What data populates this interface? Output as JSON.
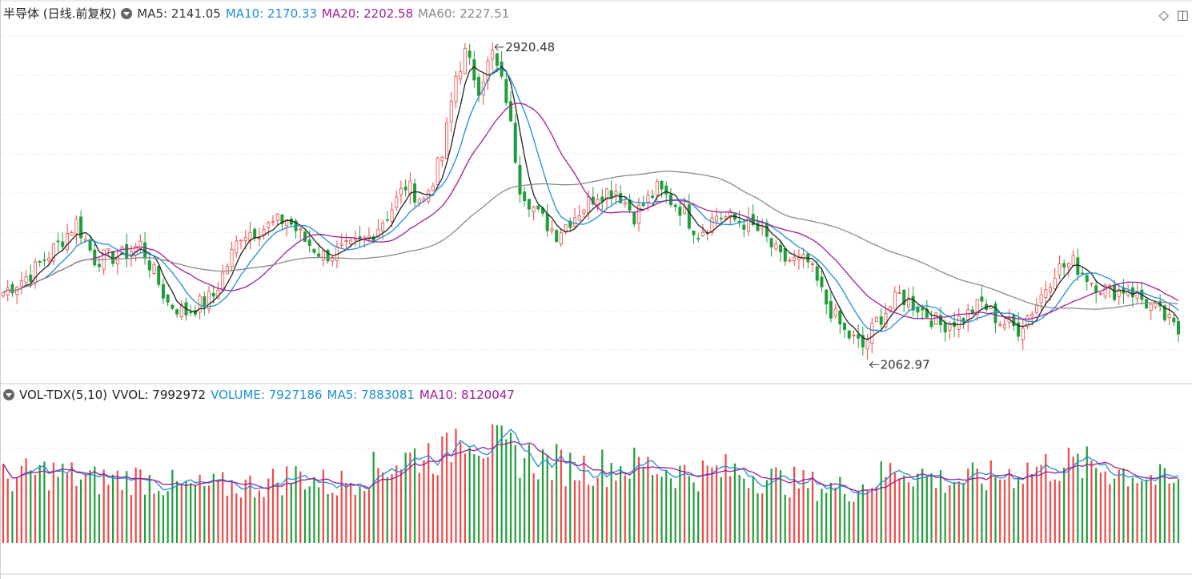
{
  "price_legend": {
    "title": "半导体 (日线.前复权)",
    "ma5": "MA5: 2141.05",
    "ma10": "MA10: 2170.33",
    "ma20": "MA20: 2202.58",
    "ma60": "MA60: 2227.51"
  },
  "volume_legend": {
    "title": "VOL-TDX(5,10)",
    "vvol": "VVOL: 7992972",
    "volume": "VOLUME: 7927186",
    "ma5": "MA5: 7883081",
    "ma10": "MA10: 8120047"
  },
  "toolbar": {
    "diamond_icon": "◇",
    "panel_icon": "◫"
  },
  "colors": {
    "up": "#f04848",
    "down": "#1f9e3a",
    "ma5": "#222222",
    "ma10": "#1e8fd6",
    "ma20": "#a01d9a",
    "ma60": "#8a8a8a"
  },
  "chart_data": [
    {
      "type": "candlestick",
      "title": "半导体 (日线.前复权)",
      "ylim": [
        2000,
        2950
      ],
      "annotations": {
        "high": "2920.48",
        "low": "2062.97"
      },
      "keypoints": [
        {
          "i": 0,
          "p": 2230
        },
        {
          "i": 6,
          "p": 2280
        },
        {
          "i": 12,
          "p": 2360
        },
        {
          "i": 16,
          "p": 2420
        },
        {
          "i": 20,
          "p": 2320
        },
        {
          "i": 26,
          "p": 2330
        },
        {
          "i": 30,
          "p": 2360
        },
        {
          "i": 36,
          "p": 2200
        },
        {
          "i": 40,
          "p": 2175
        },
        {
          "i": 46,
          "p": 2220
        },
        {
          "i": 52,
          "p": 2390
        },
        {
          "i": 56,
          "p": 2400
        },
        {
          "i": 62,
          "p": 2430
        },
        {
          "i": 66,
          "p": 2370
        },
        {
          "i": 70,
          "p": 2330
        },
        {
          "i": 76,
          "p": 2350
        },
        {
          "i": 80,
          "p": 2380
        },
        {
          "i": 84,
          "p": 2440
        },
        {
          "i": 88,
          "p": 2520
        },
        {
          "i": 92,
          "p": 2480
        },
        {
          "i": 96,
          "p": 2600
        },
        {
          "i": 99,
          "p": 2820
        },
        {
          "i": 101,
          "p": 2880
        },
        {
          "i": 104,
          "p": 2790
        },
        {
          "i": 107,
          "p": 2880
        },
        {
          "i": 110,
          "p": 2760
        },
        {
          "i": 113,
          "p": 2520
        },
        {
          "i": 117,
          "p": 2440
        },
        {
          "i": 121,
          "p": 2390
        },
        {
          "i": 125,
          "p": 2440
        },
        {
          "i": 130,
          "p": 2500
        },
        {
          "i": 134,
          "p": 2510
        },
        {
          "i": 138,
          "p": 2440
        },
        {
          "i": 143,
          "p": 2510
        },
        {
          "i": 148,
          "p": 2460
        },
        {
          "i": 152,
          "p": 2390
        },
        {
          "i": 156,
          "p": 2440
        },
        {
          "i": 162,
          "p": 2420
        },
        {
          "i": 166,
          "p": 2390
        },
        {
          "i": 170,
          "p": 2320
        },
        {
          "i": 176,
          "p": 2310
        },
        {
          "i": 180,
          "p": 2200
        },
        {
          "i": 184,
          "p": 2120
        },
        {
          "i": 188,
          "p": 2080
        },
        {
          "i": 191,
          "p": 2150
        },
        {
          "i": 196,
          "p": 2220
        },
        {
          "i": 200,
          "p": 2190
        },
        {
          "i": 205,
          "p": 2140
        },
        {
          "i": 210,
          "p": 2160
        },
        {
          "i": 214,
          "p": 2200
        },
        {
          "i": 218,
          "p": 2150
        },
        {
          "i": 222,
          "p": 2130
        },
        {
          "i": 226,
          "p": 2200
        },
        {
          "i": 230,
          "p": 2290
        },
        {
          "i": 234,
          "p": 2310
        },
        {
          "i": 238,
          "p": 2260
        },
        {
          "i": 242,
          "p": 2230
        },
        {
          "i": 246,
          "p": 2240
        },
        {
          "i": 250,
          "p": 2200
        },
        {
          "i": 254,
          "p": 2160
        },
        {
          "i": 257,
          "p": 2120
        }
      ]
    },
    {
      "type": "bar",
      "title": "VOL-TDX(5,10)",
      "ylim": [
        0,
        15000000
      ],
      "keypoints": [
        {
          "i": 0,
          "v": 6800000
        },
        {
          "i": 10,
          "v": 7500000
        },
        {
          "i": 20,
          "v": 6600000
        },
        {
          "i": 30,
          "v": 6900000
        },
        {
          "i": 40,
          "v": 5800000
        },
        {
          "i": 55,
          "v": 6100000
        },
        {
          "i": 65,
          "v": 7200000
        },
        {
          "i": 72,
          "v": 6000000
        },
        {
          "i": 85,
          "v": 8400000
        },
        {
          "i": 92,
          "v": 9500000
        },
        {
          "i": 97,
          "v": 9300000
        },
        {
          "i": 100,
          "v": 12800000
        },
        {
          "i": 106,
          "v": 10300000
        },
        {
          "i": 115,
          "v": 8900000
        },
        {
          "i": 125,
          "v": 8000000
        },
        {
          "i": 140,
          "v": 8200000
        },
        {
          "i": 150,
          "v": 7300000
        },
        {
          "i": 160,
          "v": 7600000
        },
        {
          "i": 170,
          "v": 6600000
        },
        {
          "i": 180,
          "v": 5900000
        },
        {
          "i": 186,
          "v": 5700000
        },
        {
          "i": 196,
          "v": 8000000
        },
        {
          "i": 205,
          "v": 6600000
        },
        {
          "i": 215,
          "v": 6800000
        },
        {
          "i": 225,
          "v": 7900000
        },
        {
          "i": 232,
          "v": 8300000
        },
        {
          "i": 240,
          "v": 8000000
        },
        {
          "i": 250,
          "v": 7100000
        },
        {
          "i": 257,
          "v": 5900000
        }
      ]
    }
  ]
}
